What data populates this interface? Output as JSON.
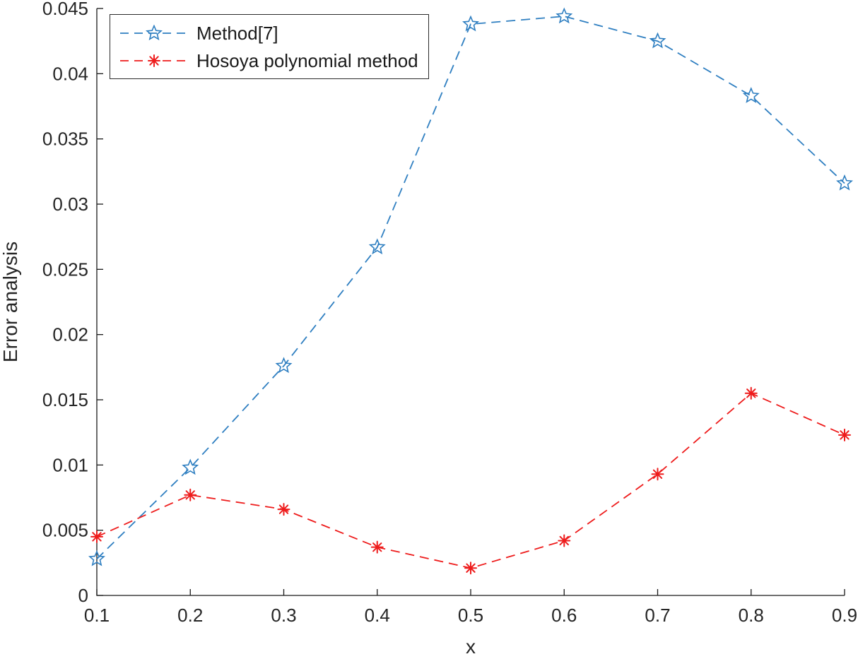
{
  "figure": {
    "background": "#ffffff"
  },
  "chart_data": {
    "type": "line",
    "title": "",
    "xlabel": "x",
    "ylabel": "Error analysis",
    "xlim": [
      0.1,
      0.9
    ],
    "ylim": [
      0,
      0.045
    ],
    "xticks": [
      0.1,
      0.2,
      0.3,
      0.4,
      0.5,
      0.6,
      0.7,
      0.8,
      0.9
    ],
    "yticks": [
      0,
      0.005,
      0.01,
      0.015,
      0.02,
      0.025,
      0.03,
      0.035,
      0.04,
      0.045
    ],
    "grid": false,
    "legend_position": "top-left",
    "axis_color": "#1a1a1a",
    "tick_label_color": "#262626",
    "x": [
      0.1,
      0.2,
      0.3,
      0.4,
      0.5,
      0.6,
      0.7,
      0.8,
      0.9
    ],
    "series": [
      {
        "name": "Method[7]",
        "color": "#2f7fc1",
        "marker": "pentagram",
        "linestyle": "dashed",
        "values": [
          0.0028,
          0.0098,
          0.0176,
          0.0267,
          0.0438,
          0.0444,
          0.0425,
          0.0383,
          0.0316
        ]
      },
      {
        "name": "Hosoya polynomial method",
        "color": "#ee1c1c",
        "marker": "asterisk",
        "linestyle": "dashed",
        "values": [
          0.0045,
          0.0077,
          0.0066,
          0.0037,
          0.0021,
          0.0042,
          0.0093,
          0.0155,
          0.0123
        ]
      }
    ]
  }
}
